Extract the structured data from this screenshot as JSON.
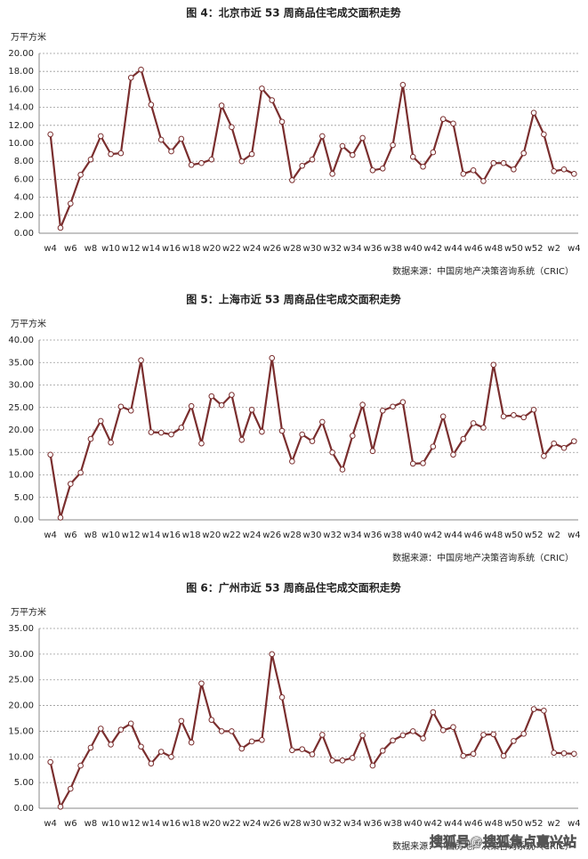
{
  "chart_data": [
    {
      "type": "line",
      "title": "图 4：北京市近 53 周商品住宅成交面积走势",
      "y_label": "万平方米",
      "source": "数据来源：中国房地产决策咨询系统（CRIC）",
      "color": "#7a2e2e",
      "grid": true,
      "categories": [
        "w4",
        null,
        "w6",
        null,
        "w8",
        null,
        "w10",
        null,
        "w12",
        null,
        "w14",
        null,
        "w16",
        null,
        "w18",
        null,
        "w20",
        null,
        "w22",
        null,
        "w24",
        null,
        "w26",
        null,
        "w28",
        null,
        "w30",
        null,
        "w32",
        null,
        "w34",
        null,
        "w36",
        null,
        "w38",
        null,
        "w40",
        null,
        "w42",
        null,
        "w44",
        null,
        "w46",
        null,
        "w48",
        null,
        "w50",
        null,
        "w52",
        null,
        "w2",
        null,
        "w4"
      ],
      "values": [
        11.0,
        0.6,
        3.3,
        6.5,
        8.2,
        10.8,
        8.8,
        8.9,
        17.3,
        18.2,
        14.3,
        10.4,
        9.1,
        10.5,
        7.6,
        7.8,
        8.2,
        14.2,
        11.8,
        8.0,
        8.8,
        16.1,
        14.8,
        12.4,
        5.9,
        7.5,
        8.2,
        10.8,
        6.6,
        9.7,
        8.7,
        10.6,
        7.0,
        7.2,
        9.8,
        16.5,
        8.5,
        7.4,
        9.0,
        12.7,
        12.2,
        6.6,
        7.0,
        5.8,
        7.8,
        7.8,
        7.1,
        8.9,
        13.4,
        11.0,
        6.9,
        7.1,
        6.6
      ],
      "ylim": [
        0,
        20
      ],
      "yticks": [
        {
          "value": 0,
          "label": "0.00"
        },
        {
          "value": 2,
          "label": "2.00"
        },
        {
          "value": 4,
          "label": "4.00"
        },
        {
          "value": 6,
          "label": "6.00"
        },
        {
          "value": 8,
          "label": "8.00"
        },
        {
          "value": 10,
          "label": "10.00"
        },
        {
          "value": 12,
          "label": "12.00"
        },
        {
          "value": 14,
          "label": "14.00"
        },
        {
          "value": 16,
          "label": "16.00"
        },
        {
          "value": 18,
          "label": "18.00"
        },
        {
          "value": 20,
          "label": "20.00"
        }
      ]
    },
    {
      "type": "line",
      "title": "图 5：上海市近 53 周商品住宅成交面积走势",
      "y_label": "万平方米",
      "source": "数据来源：中国房地产决策咨询系统（CRIC）",
      "color": "#7a2e2e",
      "grid": true,
      "categories": [
        "w4",
        null,
        "w6",
        null,
        "w8",
        null,
        "w10",
        null,
        "w12",
        null,
        "w14",
        null,
        "w16",
        null,
        "w18",
        null,
        "w20",
        null,
        "w22",
        null,
        "w24",
        null,
        "w26",
        null,
        "w28",
        null,
        "w30",
        null,
        "w32",
        null,
        "w34",
        null,
        "w36",
        null,
        "w38",
        null,
        "w40",
        null,
        "w42",
        null,
        "w44",
        null,
        "w46",
        null,
        "w48",
        null,
        "w50",
        null,
        "w52",
        null,
        "w2",
        null,
        "w4"
      ],
      "values": [
        14.5,
        0.5,
        8.0,
        10.5,
        18.0,
        22.0,
        17.2,
        25.2,
        24.3,
        35.5,
        19.5,
        19.4,
        19.0,
        20.5,
        25.3,
        17.0,
        27.5,
        25.5,
        27.8,
        17.8,
        24.5,
        19.6,
        36.0,
        19.8,
        13.0,
        19.0,
        17.5,
        21.8,
        15.0,
        11.2,
        18.7,
        25.6,
        15.3,
        24.3,
        25.2,
        26.2,
        12.5,
        12.6,
        16.3,
        23.0,
        14.5,
        18.0,
        21.5,
        20.5,
        34.5,
        23.0,
        23.3,
        22.8,
        24.5,
        14.2,
        17.0,
        16.0,
        17.5
      ],
      "ylim": [
        0,
        40
      ],
      "yticks": [
        {
          "value": 0,
          "label": "0.00"
        },
        {
          "value": 5,
          "label": "5.00"
        },
        {
          "value": 10,
          "label": "10.00"
        },
        {
          "value": 15,
          "label": "15.00"
        },
        {
          "value": 20,
          "label": "20.00"
        },
        {
          "value": 25,
          "label": "25.00"
        },
        {
          "value": 30,
          "label": "30.00"
        },
        {
          "value": 35,
          "label": "35.00"
        },
        {
          "value": 40,
          "label": "40.00"
        }
      ]
    },
    {
      "type": "line",
      "title": "图 6：广州市近 53 周商品住宅成交面积走势",
      "y_label": "万平方米",
      "source": "数据来源：中国房地产决策咨询系统（CRIC）",
      "watermark": "搜狐号@搜狐焦点嘉兴站",
      "color": "#7a2e2e",
      "grid": true,
      "categories": [
        "w4",
        null,
        "w6",
        null,
        "w8",
        null,
        "w10",
        null,
        "w12",
        null,
        "w14",
        null,
        "w16",
        null,
        "w18",
        null,
        "w20",
        null,
        "w22",
        null,
        "w24",
        null,
        "w26",
        null,
        "w28",
        null,
        "w30",
        null,
        "w32",
        null,
        "w34",
        null,
        "w36",
        null,
        "w38",
        null,
        "w40",
        null,
        "w42",
        null,
        "w44",
        null,
        "w46",
        null,
        "w48",
        null,
        "w50",
        null,
        "w52",
        null,
        "w2",
        null,
        "w4"
      ],
      "values": [
        9.0,
        0.3,
        3.8,
        8.3,
        11.8,
        15.5,
        12.4,
        15.3,
        16.5,
        12.0,
        8.7,
        11.0,
        10.0,
        17.0,
        12.8,
        24.3,
        17.2,
        15.0,
        15.0,
        11.6,
        13.0,
        13.3,
        30.0,
        21.6,
        11.3,
        11.5,
        10.5,
        14.3,
        9.3,
        9.3,
        9.8,
        14.2,
        8.3,
        11.2,
        13.2,
        14.2,
        15.0,
        13.6,
        18.7,
        15.2,
        15.8,
        10.2,
        10.6,
        14.3,
        14.4,
        10.2,
        13.1,
        14.5,
        19.3,
        19.0,
        10.8,
        10.7,
        10.6
      ],
      "ylim": [
        0,
        35
      ],
      "yticks": [
        {
          "value": 0,
          "label": "0.00"
        },
        {
          "value": 5,
          "label": "5.00"
        },
        {
          "value": 10,
          "label": "10.00"
        },
        {
          "value": 15,
          "label": "15.00"
        },
        {
          "value": 20,
          "label": "20.00"
        },
        {
          "value": 25,
          "label": "25.00"
        },
        {
          "value": 30,
          "label": "30.00"
        },
        {
          "value": 35,
          "label": "35.00"
        }
      ]
    }
  ]
}
